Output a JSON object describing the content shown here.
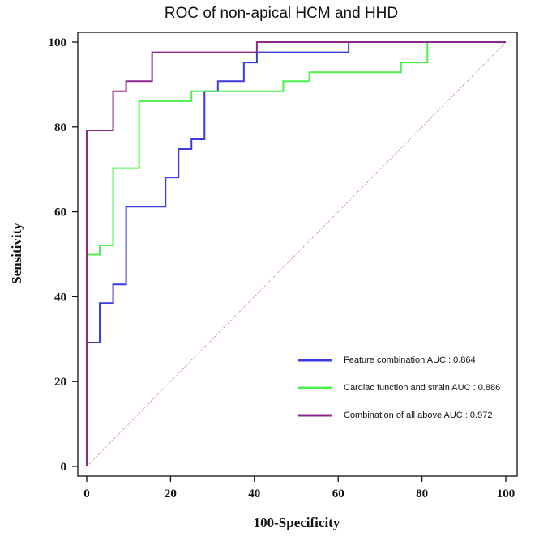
{
  "chart_data": {
    "type": "line",
    "title": "ROC of non-apical HCM and HHD",
    "xlabel": "100-Specificity",
    "ylabel": "Sensitivity",
    "xlim": [
      0,
      100
    ],
    "ylim": [
      0,
      100
    ],
    "xticks": [
      0,
      20,
      40,
      60,
      80,
      100
    ],
    "yticks": [
      0,
      20,
      40,
      60,
      80,
      100
    ],
    "grid": false,
    "legend_position": "bottom-right",
    "reference_line": {
      "name": "Reference",
      "color": "#e08a8a",
      "x": [
        0,
        100
      ],
      "y": [
        0,
        100
      ]
    },
    "series": [
      {
        "name": "Feature combination AUC : 0.864",
        "color": "#3a3ae0",
        "x": [
          0,
          0,
          3.1,
          3.1,
          6.3,
          6.3,
          9.4,
          9.4,
          18.8,
          18.8,
          21.9,
          21.9,
          25,
          25,
          28.1,
          28.1,
          31.3,
          31.3,
          37.5,
          37.5,
          40.6,
          40.6,
          62.5,
          62.5,
          100
        ],
        "y": [
          0,
          29.2,
          29.2,
          38.5,
          38.5,
          42.9,
          42.9,
          61.2,
          61.2,
          68.1,
          68.1,
          74.8,
          74.8,
          77.1,
          77.1,
          88.4,
          88.4,
          90.8,
          90.8,
          95.2,
          95.2,
          97.6,
          97.6,
          100,
          100
        ]
      },
      {
        "name": "Cardiac function and strain AUC : 0.886",
        "color": "#4cf04c",
        "x": [
          0,
          0,
          3.1,
          3.1,
          6.3,
          6.3,
          12.5,
          12.5,
          25,
          25,
          46.9,
          46.9,
          53.1,
          53.1,
          75,
          75,
          81.3,
          81.3,
          100
        ],
        "y": [
          0,
          49.9,
          49.9,
          52.1,
          52.1,
          70.3,
          70.3,
          86.1,
          86.1,
          88.4,
          88.4,
          90.8,
          90.8,
          92.9,
          92.9,
          95.2,
          95.2,
          100,
          100
        ]
      },
      {
        "name": "Combination of  all above  AUC : 0.972",
        "color": "#8c2a8c",
        "x": [
          0,
          0,
          6.3,
          6.3,
          9.4,
          9.4,
          15.6,
          15.6,
          40.6,
          40.6,
          100
        ],
        "y": [
          0,
          79.2,
          79.2,
          88.4,
          88.4,
          90.8,
          90.8,
          97.6,
          97.6,
          100,
          100
        ]
      }
    ]
  }
}
